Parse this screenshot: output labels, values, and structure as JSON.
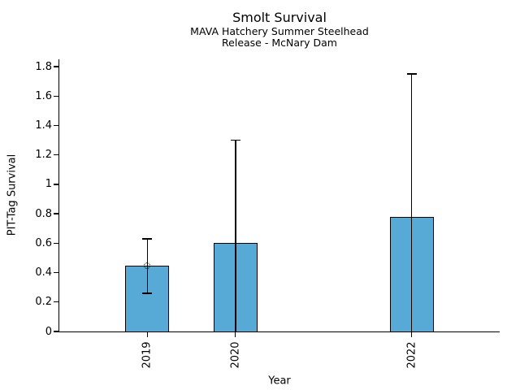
{
  "chart_data": {
    "type": "bar",
    "title": "Smolt Survival",
    "subtitle1": "MAVA Hatchery Summer Steelhead",
    "subtitle2": "Release - McNary Dam",
    "xlabel": "Year",
    "ylabel": "PIT-Tag Survival",
    "categories": [
      "2019",
      "2020",
      "2022"
    ],
    "series": [
      {
        "name": "PIT-Tag Survival",
        "values": [
          0.45,
          0.6,
          0.78
        ],
        "error_low": [
          0.26,
          0.0,
          0.0
        ],
        "error_high": [
          0.63,
          1.3,
          1.75
        ],
        "marker_at_top": [
          true,
          false,
          false
        ]
      }
    ],
    "x_years": [
      2019,
      2020,
      2022
    ],
    "y_ticks": [
      "0",
      "0.2",
      "0.4",
      "0.6",
      "0.8",
      "1",
      "1.2",
      "1.4",
      "1.6",
      "1.8"
    ],
    "ylim": [
      0,
      1.85
    ],
    "xlim": [
      2018,
      2023
    ],
    "bar_width_years": 0.5,
    "grid": false,
    "legend": null,
    "colors": {
      "bar_fill": "#57A9D6",
      "edge": "#000000",
      "background": "#ffffff",
      "text": "#000000"
    }
  }
}
